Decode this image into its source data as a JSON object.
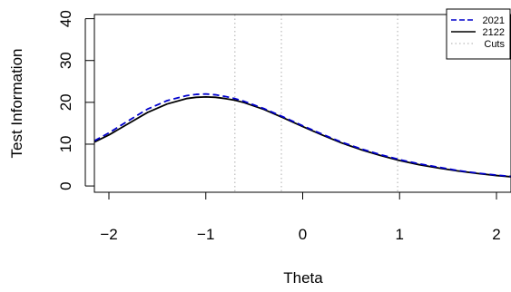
{
  "chart_data": {
    "type": "line",
    "title": "",
    "xlabel": "Theta",
    "ylabel": "Test Information",
    "xlim": [
      -2.15,
      2.15
    ],
    "ylim": [
      -1.5,
      41
    ],
    "xticks": [
      -2,
      -1,
      0,
      1,
      2
    ],
    "xtick_labels": [
      "−2",
      "−1",
      "0",
      "1",
      "2"
    ],
    "yticks": [
      0,
      10,
      20,
      30,
      40
    ],
    "ytick_labels": [
      "0",
      "10",
      "20",
      "30",
      "40"
    ],
    "grid": false,
    "legend_position": "top-right",
    "cuts": [
      -0.7,
      -0.22,
      0.98
    ],
    "series": [
      {
        "name": "2021",
        "style": "dashed",
        "color": "#0000cc",
        "x": [
          -2.15,
          -2.0,
          -1.8,
          -1.6,
          -1.4,
          -1.2,
          -1.1,
          -1.0,
          -0.9,
          -0.8,
          -0.7,
          -0.6,
          -0.4,
          -0.2,
          0.0,
          0.2,
          0.4,
          0.6,
          0.8,
          1.0,
          1.2,
          1.4,
          1.6,
          1.8,
          2.0,
          2.15
        ],
        "y": [
          10.8,
          12.7,
          15.6,
          18.4,
          20.4,
          21.6,
          21.9,
          22.0,
          21.8,
          21.4,
          20.9,
          20.2,
          18.5,
          16.5,
          14.4,
          12.4,
          10.5,
          8.9,
          7.5,
          6.3,
          5.3,
          4.5,
          3.7,
          3.1,
          2.6,
          2.3
        ]
      },
      {
        "name": "2122",
        "style": "solid",
        "color": "#000000",
        "x": [
          -2.15,
          -2.0,
          -1.8,
          -1.6,
          -1.4,
          -1.2,
          -1.1,
          -1.0,
          -0.9,
          -0.8,
          -0.7,
          -0.6,
          -0.4,
          -0.2,
          0.0,
          0.2,
          0.4,
          0.6,
          0.8,
          1.0,
          1.2,
          1.4,
          1.6,
          1.8,
          2.0,
          2.15
        ],
        "y": [
          10.5,
          12.2,
          14.9,
          17.6,
          19.6,
          20.9,
          21.2,
          21.3,
          21.2,
          20.9,
          20.5,
          19.9,
          18.3,
          16.3,
          14.2,
          12.2,
          10.3,
          8.7,
          7.3,
          6.1,
          5.1,
          4.3,
          3.6,
          3.0,
          2.5,
          2.2
        ]
      }
    ],
    "legend": [
      {
        "label": "2021",
        "style": "dashed",
        "color": "#0000cc"
      },
      {
        "label": "2122",
        "style": "solid",
        "color": "#000000"
      },
      {
        "label": "Cuts",
        "style": "dotted",
        "color": "#bbbbbb"
      }
    ]
  }
}
